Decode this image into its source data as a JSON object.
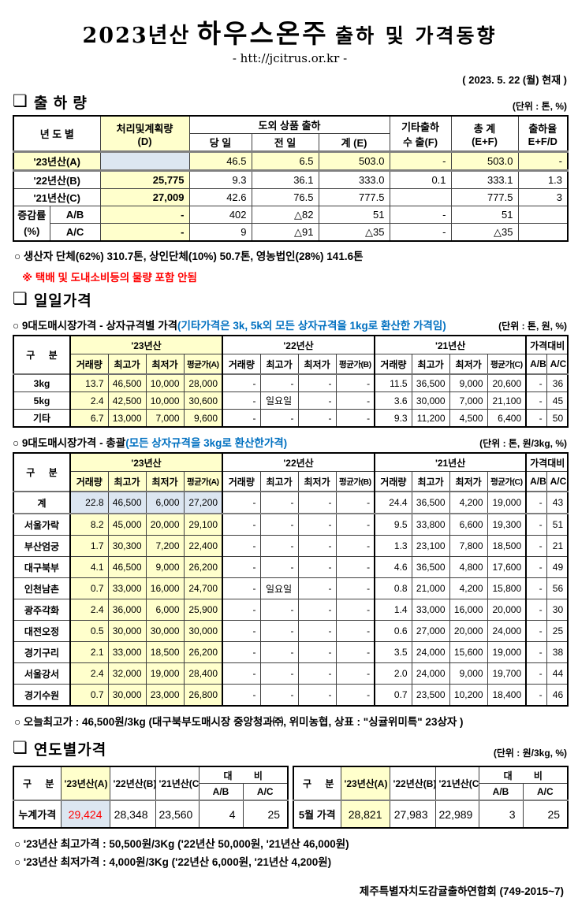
{
  "colors": {
    "highlight_yellow": "#FFFFCC",
    "highlight_blue": "#DCE6F1",
    "red_text": "#FF0000",
    "blue_text": "#0070C0"
  },
  "icons": {
    "section_box": "❏"
  },
  "header": {
    "title_prefix": "2023년산",
    "title_product": "하우스온주",
    "title_suffix": "출하 및 가격동향",
    "url": "- htt://jcitrus.or.kr -",
    "date": "( 2023.  5.  22 (월) 현재 )"
  },
  "shipment": {
    "section_title": "출 하 량",
    "unit": "(단위 : 톤, %)",
    "head": {
      "year": "년 도 별",
      "plan": "처리및계획량",
      "plan_sub": "(D)",
      "group": "도외 상품 출하",
      "day": "당 일",
      "prev": "전 일",
      "sum": "계 (E)",
      "etc": "기타출하",
      "etc_sub": "수 출(F)",
      "total": "총  계",
      "total_sub": "(E+F)",
      "rate": "출하율",
      "rate_sub": "E+F/D"
    },
    "rows": [
      {
        "label": "'23년산(A)",
        "plan": "",
        "day": "46.5",
        "prev": "6.5",
        "sum": "503.0",
        "exp": "-",
        "total": "503.0",
        "rate": "-"
      },
      {
        "label": "'22년산(B)",
        "plan": "25,775",
        "day": "9.3",
        "prev": "36.1",
        "sum": "333.0",
        "exp": "0.1",
        "total": "333.1",
        "rate": "1.3"
      },
      {
        "label": "'21년산(C)",
        "plan": "27,009",
        "day": "42.6",
        "prev": "76.5",
        "sum": "777.5",
        "exp": "",
        "total": "777.5",
        "rate": "3"
      }
    ],
    "chg": {
      "label": "증감률",
      "label_sub": "(%)",
      "rows": [
        {
          "name": "A/B",
          "plan": "-",
          "day": "402",
          "prev": "△82",
          "sum": "51",
          "exp": "-",
          "total": "51",
          "rate": ""
        },
        {
          "name": "A/C",
          "plan": "-",
          "day": "9",
          "prev": "△91",
          "sum": "△35",
          "exp": "-",
          "total": "△35",
          "rate": ""
        }
      ]
    },
    "note1": "○ 생산자 단체(62%)  310.7톤,  상인단체(10%) 50.7톤, 영농법인(28%) 141.6톤",
    "note2": "※ 택배 및 도내소비등의 물량 포함 안됨"
  },
  "daily": {
    "section_title": "일일가격",
    "cols": {
      "gubun": "구 분",
      "vol": "거래량",
      "high": "최고가",
      "low": "최저가",
      "avg_a": "평균가(A)",
      "avg_b": "평균가(B)",
      "avg_c": "평균가(C)",
      "y23": "'23년산",
      "y22": "'22년산",
      "y21": "'21년산",
      "cmp": "가격대비",
      "ab": "A/B",
      "ac": "A/C"
    },
    "box": {
      "title": "○ 9대도매시장가격 - 상자규격별 가격",
      "title_note": "(기타가격은 3k, 5k외 모든 상자규격을 1kg로 환산한 가격임)",
      "unit": "(단위 : 톤,  원, %)",
      "rows": [
        [
          "3kg",
          "13.7",
          "46,500",
          "10,000",
          "28,000",
          "-",
          "-",
          "-",
          "-",
          "11.5",
          "36,500",
          "9,000",
          "20,600",
          "-",
          "36"
        ],
        [
          "5kg",
          "2.4",
          "42,500",
          "10,000",
          "30,600",
          "-",
          "일요일",
          "-",
          "-",
          "3.6",
          "30,000",
          "7,000",
          "21,100",
          "-",
          "45"
        ],
        [
          "기타",
          "6.7",
          "13,000",
          "7,000",
          "9,600",
          "-",
          "-",
          "-",
          "-",
          "9.3",
          "11,200",
          "4,500",
          "6,400",
          "-",
          "50"
        ]
      ]
    },
    "total": {
      "title": "○ 9대도매시장가격 - 총괄",
      "title_note": "(모든 상자규격을 3kg로 환산한가격)",
      "unit": "(단위 : 톤, 원/3kg, %)",
      "rows": [
        [
          "계",
          "22.8",
          "46,500",
          "6,000",
          "27,200",
          "-",
          "-",
          "-",
          "-",
          "24.4",
          "36,500",
          "4,200",
          "19,000",
          "-",
          "43"
        ],
        [
          "서울가락",
          "8.2",
          "45,000",
          "20,000",
          "29,100",
          "-",
          "-",
          "-",
          "-",
          "9.5",
          "33,800",
          "6,600",
          "19,300",
          "-",
          "51"
        ],
        [
          "부산엄궁",
          "1.7",
          "30,300",
          "7,200",
          "22,400",
          "-",
          "-",
          "-",
          "-",
          "1.3",
          "23,100",
          "7,800",
          "18,500",
          "-",
          "21"
        ],
        [
          "대구북부",
          "4.1",
          "46,500",
          "9,000",
          "26,200",
          "-",
          "-",
          "-",
          "-",
          "4.6",
          "36,500",
          "4,800",
          "17,600",
          "-",
          "49"
        ],
        [
          "인천남촌",
          "0.7",
          "33,000",
          "16,000",
          "24,700",
          "-",
          "일요일",
          "-",
          "-",
          "0.8",
          "21,000",
          "4,200",
          "15,800",
          "-",
          "56"
        ],
        [
          "광주각화",
          "2.4",
          "36,000",
          "6,000",
          "25,900",
          "-",
          "-",
          "-",
          "-",
          "1.4",
          "33,000",
          "16,000",
          "20,000",
          "-",
          "30"
        ],
        [
          "대전오정",
          "0.5",
          "30,000",
          "30,000",
          "30,000",
          "-",
          "-",
          "-",
          "-",
          "0.6",
          "27,000",
          "20,000",
          "24,000",
          "-",
          "25"
        ],
        [
          "경기구리",
          "2.1",
          "33,000",
          "18,500",
          "26,200",
          "-",
          "-",
          "-",
          "-",
          "3.5",
          "24,000",
          "15,600",
          "19,000",
          "-",
          "38"
        ],
        [
          "서울강서",
          "2.4",
          "32,000",
          "19,000",
          "28,400",
          "-",
          "-",
          "-",
          "-",
          "2.0",
          "24,000",
          "9,000",
          "19,700",
          "-",
          "44"
        ],
        [
          "경기수원",
          "0.7",
          "30,000",
          "23,000",
          "26,800",
          "-",
          "-",
          "-",
          "-",
          "0.7",
          "23,500",
          "10,200",
          "18,400",
          "-",
          "46"
        ]
      ]
    },
    "today_note": "○ 오늘최고가 : 46,500원/3kg (대구북부도매시장 중앙청과㈜, 위미농협, 상표 : \"싱귤위미특\" 23상자 )"
  },
  "yearly": {
    "section_title": "연도별가격",
    "unit": "(단위 : 원/3kg, %)",
    "cols": {
      "gubun": "구 분",
      "a": "'23년산(A)",
      "b": "'22년산(B)",
      "c": "'21년산(C)",
      "cmp": "대 비",
      "ab": "A/B",
      "ac": "A/C"
    },
    "left": {
      "label": "누계가격",
      "a": "29,424",
      "b": "28,348",
      "c": "23,560",
      "ab": "4",
      "ac": "25"
    },
    "right": {
      "label": "5월 가격",
      "a": "28,821",
      "b": "27,983",
      "c": "22,989",
      "ab": "3",
      "ac": "25"
    }
  },
  "footer": {
    "note1": "○ '23년산 최고가격 : 50,500원/3Kg ('22년산 50,000원, '21년산 46,000원)",
    "note2": "○ '23년산 최저가격 :   4,000원/3Kg ('22년산   6,000원, '21년산  4,200원)",
    "org": "제주특별자치도감귤출하연합회 (749-2015~7)"
  }
}
